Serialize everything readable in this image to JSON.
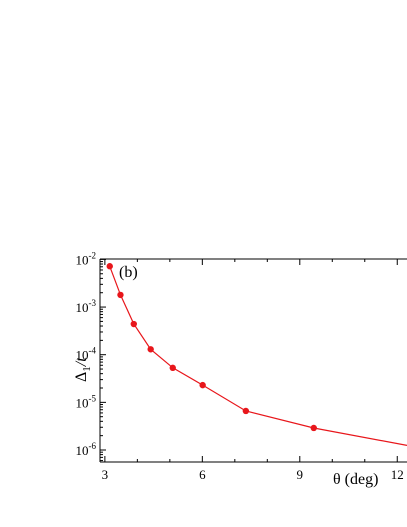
{
  "chart_data": {
    "type": "line",
    "panel_label": "(b)",
    "xlabel": "θ (deg)",
    "ylabel_main": "Δ",
    "ylabel_sub": "1",
    "ylabel_tail": "/t",
    "y_scale": "log",
    "xlim": [
      2.85,
      12.3
    ],
    "ylim": [
      5.6e-07,
      0.0102
    ],
    "x_ticks": [
      3,
      6,
      9,
      12
    ],
    "x_tick_labels": [
      "3",
      "6",
      "9",
      "12"
    ],
    "y_ticks": [
      0.01,
      0.001,
      0.0001,
      1e-05,
      1e-06
    ],
    "y_tick_labels": [
      {
        "base": "10",
        "exp": "-2"
      },
      {
        "base": "10",
        "exp": "-3"
      },
      {
        "base": "10",
        "exp": "-4"
      },
      {
        "base": "10",
        "exp": "-5"
      },
      {
        "base": "10",
        "exp": "-6"
      }
    ],
    "color": "#e8161b",
    "series": [
      {
        "x": [
          3.15,
          3.48,
          3.89,
          4.41,
          5.09,
          6.01,
          7.34,
          9.43
        ],
        "y": [
          0.0072,
          0.0018,
          0.00044,
          0.00013,
          5.3e-05,
          2.3e-05,
          6.6e-06,
          2.9e-06
        ]
      }
    ],
    "line_extension": {
      "x": [
        9.43,
        12.3
      ],
      "y": [
        2.9e-06,
        1.25e-06
      ]
    },
    "grid": false,
    "legend": "none"
  }
}
